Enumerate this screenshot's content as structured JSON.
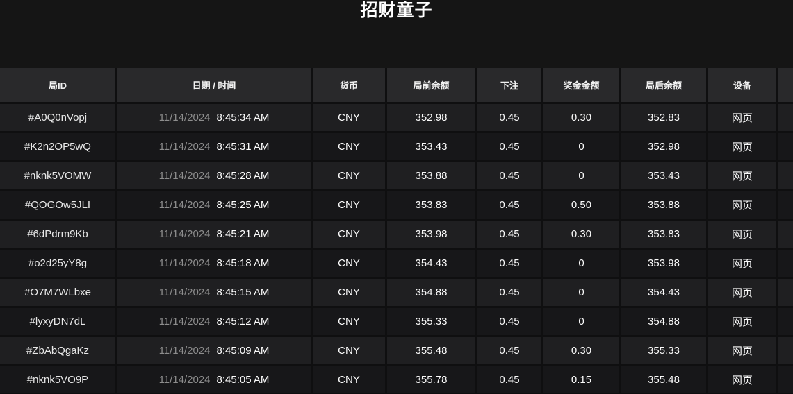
{
  "title": "招财童子",
  "colors": {
    "page_bg": "#151515",
    "header_row_bg": "#29292b",
    "row_odd_bg": "#1f1f21",
    "row_even_bg": "#171719",
    "divider": "#0f0f10",
    "date_muted_text": "#8d8d8d",
    "primary_text": "#fdfdfd"
  },
  "table": {
    "columns": [
      {
        "key": "game-id",
        "label": "局ID"
      },
      {
        "key": "datetime",
        "label": "日期 / 时间"
      },
      {
        "key": "currency",
        "label": "货币"
      },
      {
        "key": "balance-before",
        "label": "局前余额"
      },
      {
        "key": "bet",
        "label": "下注"
      },
      {
        "key": "prize",
        "label": "奖金金额"
      },
      {
        "key": "balance-after",
        "label": "局后余额"
      },
      {
        "key": "device",
        "label": "设备"
      }
    ],
    "rows": [
      {
        "id": "#A0Q0nVopj",
        "date": "11/14/2024",
        "time": "8:45:34 AM",
        "currency": "CNY",
        "balance_before": "352.98",
        "bet": "0.45",
        "prize": "0.30",
        "balance_after": "352.83",
        "device": "网页"
      },
      {
        "id": "#K2n2OP5wQ",
        "date": "11/14/2024",
        "time": "8:45:31 AM",
        "currency": "CNY",
        "balance_before": "353.43",
        "bet": "0.45",
        "prize": "0",
        "balance_after": "352.98",
        "device": "网页"
      },
      {
        "id": "#nknk5VOMW",
        "date": "11/14/2024",
        "time": "8:45:28 AM",
        "currency": "CNY",
        "balance_before": "353.88",
        "bet": "0.45",
        "prize": "0",
        "balance_after": "353.43",
        "device": "网页"
      },
      {
        "id": "#QOGOw5JLI",
        "date": "11/14/2024",
        "time": "8:45:25 AM",
        "currency": "CNY",
        "balance_before": "353.83",
        "bet": "0.45",
        "prize": "0.50",
        "balance_after": "353.88",
        "device": "网页"
      },
      {
        "id": "#6dPdrm9Kb",
        "date": "11/14/2024",
        "time": "8:45:21 AM",
        "currency": "CNY",
        "balance_before": "353.98",
        "bet": "0.45",
        "prize": "0.30",
        "balance_after": "353.83",
        "device": "网页"
      },
      {
        "id": "#o2d25yY8g",
        "date": "11/14/2024",
        "time": "8:45:18 AM",
        "currency": "CNY",
        "balance_before": "354.43",
        "bet": "0.45",
        "prize": "0",
        "balance_after": "353.98",
        "device": "网页"
      },
      {
        "id": "#O7M7WLbxe",
        "date": "11/14/2024",
        "time": "8:45:15 AM",
        "currency": "CNY",
        "balance_before": "354.88",
        "bet": "0.45",
        "prize": "0",
        "balance_after": "354.43",
        "device": "网页"
      },
      {
        "id": "#lyxyDN7dL",
        "date": "11/14/2024",
        "time": "8:45:12 AM",
        "currency": "CNY",
        "balance_before": "355.33",
        "bet": "0.45",
        "prize": "0",
        "balance_after": "354.88",
        "device": "网页"
      },
      {
        "id": "#ZbAbQgaKz",
        "date": "11/14/2024",
        "time": "8:45:09 AM",
        "currency": "CNY",
        "balance_before": "355.48",
        "bet": "0.45",
        "prize": "0.30",
        "balance_after": "355.33",
        "device": "网页"
      },
      {
        "id": "#nknk5VO9P",
        "date": "11/14/2024",
        "time": "8:45:05 AM",
        "currency": "CNY",
        "balance_before": "355.78",
        "bet": "0.45",
        "prize": "0.15",
        "balance_after": "355.48",
        "device": "网页"
      }
    ]
  }
}
